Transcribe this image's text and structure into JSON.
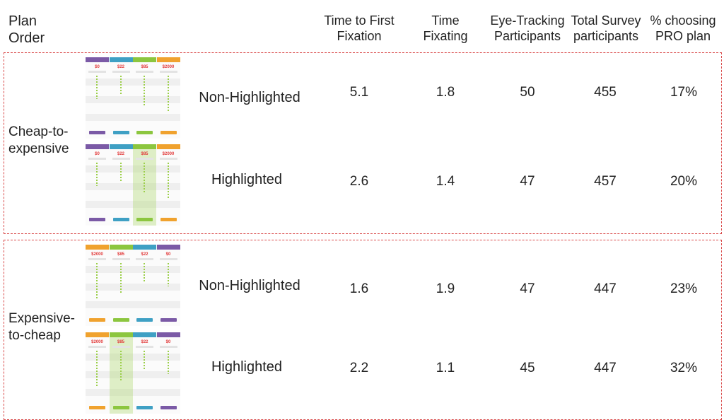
{
  "header": {
    "plan_order": "Plan\nOrder",
    "ttff": "Time to First\nFixation",
    "time_fixating": "Time\nFixating",
    "eye_tracking": "Eye-Tracking\nParticipants",
    "total_survey": "Total Survey\nparticipants",
    "pct_pro": "% choosing\nPRO plan"
  },
  "groups": [
    {
      "label": "Cheap-to-\nexpensive",
      "rows": [
        {
          "variant": "Non-Highlighted",
          "ttff": "5.1",
          "fixating": "1.8",
          "eye": "50",
          "survey": "455",
          "pct": "17%"
        },
        {
          "variant": "Highlighted",
          "ttff": "2.6",
          "fixating": "1.4",
          "eye": "47",
          "survey": "457",
          "pct": "20%"
        }
      ]
    },
    {
      "label": "Expensive-\nto-cheap",
      "rows": [
        {
          "variant": "Non-Highlighted",
          "ttff": "1.6",
          "fixating": "1.9",
          "eye": "47",
          "survey": "447",
          "pct": "23%"
        },
        {
          "variant": "Highlighted",
          "ttff": "2.2",
          "fixating": "1.1",
          "eye": "45",
          "survey": "447",
          "pct": "32%"
        }
      ]
    }
  ],
  "thumbnails": {
    "cheap_to_expensive": {
      "plans": [
        "Free",
        "Basic",
        "Pro",
        "Enterprise"
      ],
      "prices": [
        "$0",
        "$22",
        "$85",
        "$2000"
      ],
      "colors": [
        "#7b5aa6",
        "#3fa0c4",
        "#8cc63f",
        "#f0a22e"
      ]
    },
    "expensive_to_cheap": {
      "plans": [
        "Enterprise",
        "Pro",
        "Basic",
        "Free"
      ],
      "prices": [
        "$2000",
        "$85",
        "$22",
        "$0"
      ],
      "colors": [
        "#f0a22e",
        "#8cc63f",
        "#3fa0c4",
        "#7b5aa6"
      ]
    }
  },
  "colors": {
    "dashed_border": "#d94a4a",
    "price_text": "#e23b3b"
  }
}
